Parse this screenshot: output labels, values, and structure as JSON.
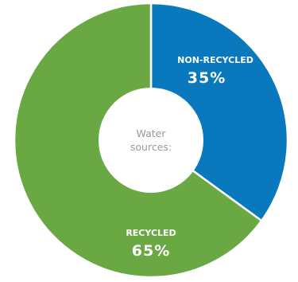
{
  "chart_data": {
    "type": "pie",
    "style": "donut",
    "center_label": [
      "Water",
      "sources:"
    ],
    "slices": [
      {
        "label": "NON-RECYCLED",
        "value": 35,
        "value_label": "35%",
        "color": "#0a78bc"
      },
      {
        "label": "RECYCLED",
        "value": 65,
        "value_label": "65%",
        "color": "#6aa843"
      }
    ],
    "legend": "none"
  }
}
